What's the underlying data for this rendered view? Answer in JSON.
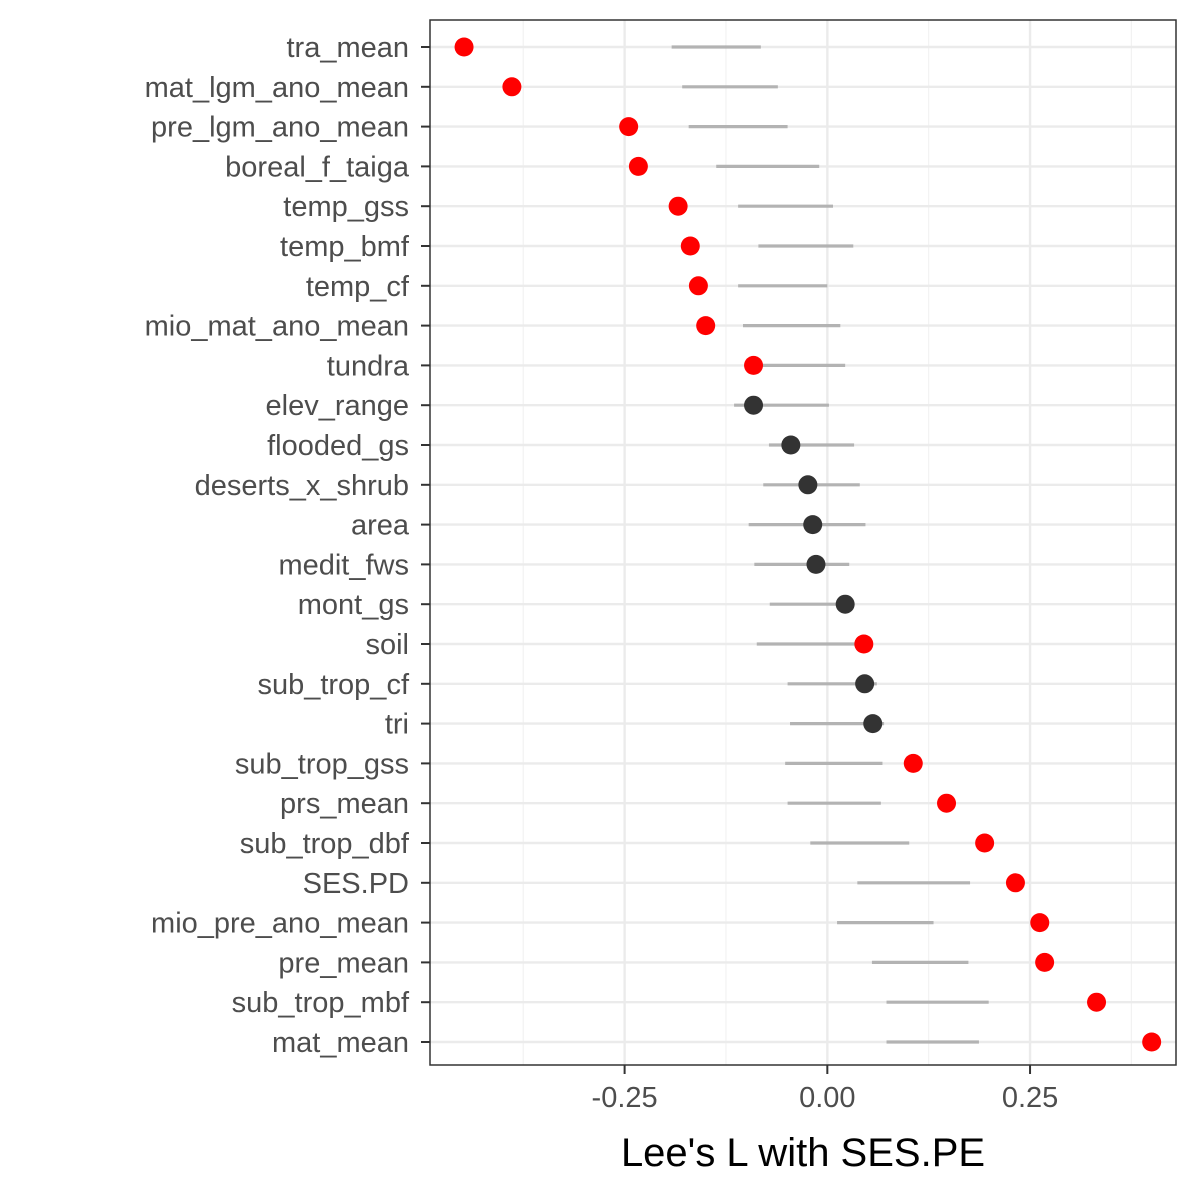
{
  "chart_data": {
    "type": "scatter",
    "xlabel": "Lee's L with SES.PE",
    "ylabel": "",
    "xlim": [
      -0.49,
      0.43
    ],
    "x_ticks": [
      {
        "value": -0.25,
        "label": "-0.25"
      },
      {
        "value": 0.0,
        "label": "0.00"
      },
      {
        "value": 0.25,
        "label": "0.25"
      }
    ],
    "grid": true,
    "colors": {
      "significant": "#ff0000",
      "not_significant": "#333333",
      "interval": "#b3b3b3",
      "grid_major": "#ebebeb",
      "grid_minor": "#f2f2f2",
      "panel_border": "#333333"
    },
    "variables": [
      {
        "label": "tra_mean",
        "value": -0.448,
        "low": -0.192,
        "high": -0.082,
        "significant": true
      },
      {
        "label": "mat_lgm_ano_mean",
        "value": -0.389,
        "low": -0.179,
        "high": -0.061,
        "significant": true
      },
      {
        "label": "pre_lgm_ano_mean",
        "value": -0.245,
        "low": -0.171,
        "high": -0.049,
        "significant": true
      },
      {
        "label": "boreal_f_taiga",
        "value": -0.233,
        "low": -0.137,
        "high": -0.01,
        "significant": true
      },
      {
        "label": "temp_gss",
        "value": -0.184,
        "low": -0.11,
        "high": 0.007,
        "significant": true
      },
      {
        "label": "temp_bmf",
        "value": -0.169,
        "low": -0.085,
        "high": 0.032,
        "significant": true
      },
      {
        "label": "temp_cf",
        "value": -0.159,
        "low": -0.11,
        "high": 0.0,
        "significant": true
      },
      {
        "label": "mio_mat_ano_mean",
        "value": -0.15,
        "low": -0.104,
        "high": 0.016,
        "significant": true
      },
      {
        "label": "tundra",
        "value": -0.091,
        "low": -0.095,
        "high": 0.022,
        "significant": true
      },
      {
        "label": "elev_range",
        "value": -0.091,
        "low": -0.115,
        "high": 0.002,
        "significant": false
      },
      {
        "label": "flooded_gs",
        "value": -0.045,
        "low": -0.072,
        "high": 0.033,
        "significant": false
      },
      {
        "label": "deserts_x_shrub",
        "value": -0.024,
        "low": -0.079,
        "high": 0.04,
        "significant": false
      },
      {
        "label": "area",
        "value": -0.018,
        "low": -0.097,
        "high": 0.047,
        "significant": false
      },
      {
        "label": "medit_fws",
        "value": -0.014,
        "low": -0.09,
        "high": 0.027,
        "significant": false
      },
      {
        "label": "mont_gs",
        "value": 0.022,
        "low": -0.071,
        "high": 0.026,
        "significant": false
      },
      {
        "label": "soil",
        "value": 0.045,
        "low": -0.087,
        "high": 0.047,
        "significant": true
      },
      {
        "label": "sub_trop_cf",
        "value": 0.046,
        "low": -0.049,
        "high": 0.061,
        "significant": false
      },
      {
        "label": "tri",
        "value": 0.056,
        "low": -0.046,
        "high": 0.07,
        "significant": false
      },
      {
        "label": "sub_trop_gss",
        "value": 0.106,
        "low": -0.052,
        "high": 0.068,
        "significant": true
      },
      {
        "label": "prs_mean",
        "value": 0.147,
        "low": -0.049,
        "high": 0.066,
        "significant": true
      },
      {
        "label": "sub_trop_dbf",
        "value": 0.194,
        "low": -0.021,
        "high": 0.101,
        "significant": true
      },
      {
        "label": "SES.PD",
        "value": 0.232,
        "low": 0.037,
        "high": 0.176,
        "significant": true
      },
      {
        "label": "mio_pre_ano_mean",
        "value": 0.262,
        "low": 0.012,
        "high": 0.131,
        "significant": true
      },
      {
        "label": "pre_mean",
        "value": 0.268,
        "low": 0.055,
        "high": 0.174,
        "significant": true
      },
      {
        "label": "sub_trop_mbf",
        "value": 0.332,
        "low": 0.073,
        "high": 0.199,
        "significant": true
      },
      {
        "label": "mat_mean",
        "value": 0.4,
        "low": 0.073,
        "high": 0.187,
        "significant": true
      }
    ]
  }
}
